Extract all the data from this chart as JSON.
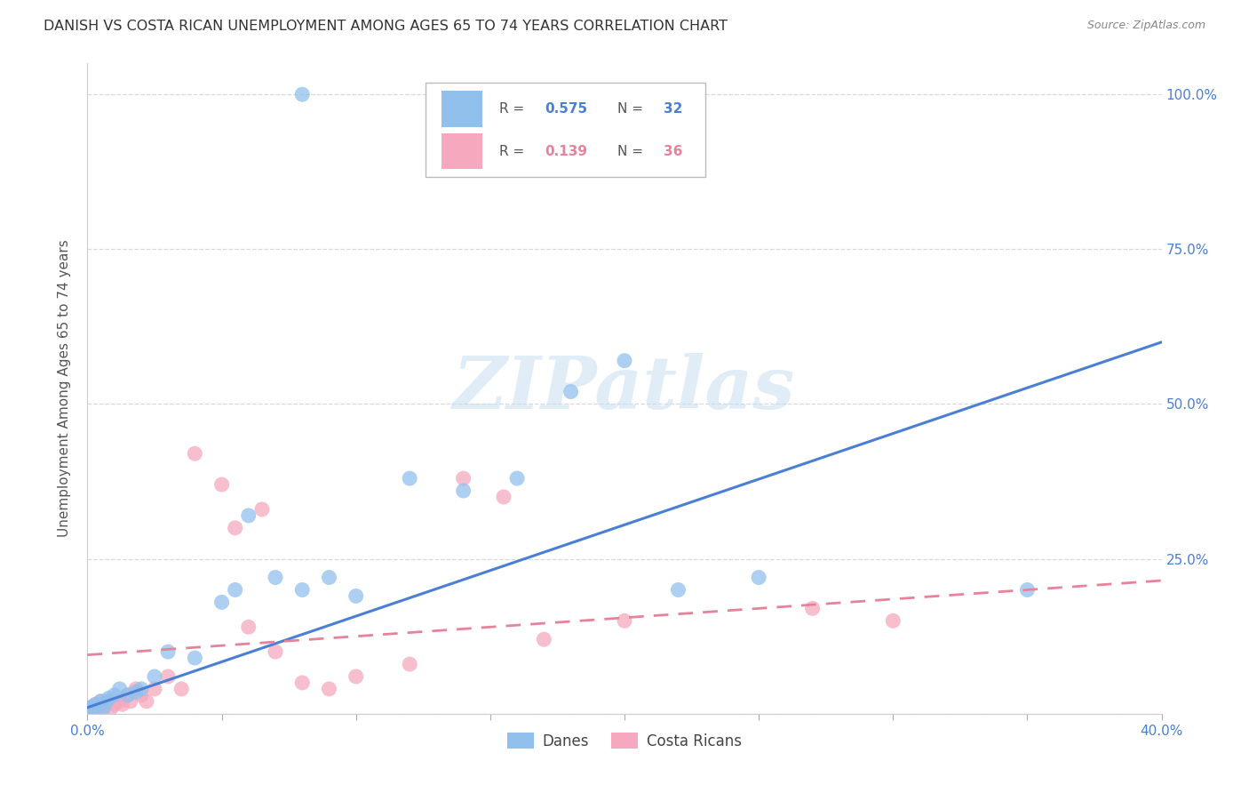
{
  "title": "DANISH VS COSTA RICAN UNEMPLOYMENT AMONG AGES 65 TO 74 YEARS CORRELATION CHART",
  "source": "Source: ZipAtlas.com",
  "ylabel": "Unemployment Among Ages 65 to 74 years",
  "xlim": [
    0.0,
    0.4
  ],
  "ylim": [
    0.0,
    1.05
  ],
  "xticks": [
    0.0,
    0.05,
    0.1,
    0.15,
    0.2,
    0.25,
    0.3,
    0.35,
    0.4
  ],
  "yticks": [
    0.0,
    0.25,
    0.5,
    0.75,
    1.0
  ],
  "ytick_labels": [
    "0.0%",
    "25.0%",
    "50.0%",
    "75.0%",
    "100.0%"
  ],
  "legend_blue_R": "0.575",
  "legend_blue_N": "32",
  "legend_pink_R": "0.139",
  "legend_pink_N": "36",
  "blue_color": "#92c0ed",
  "pink_color": "#f5a8be",
  "blue_line_color": "#4a7fd4",
  "pink_line_color": "#e8829a",
  "blue_scatter_x": [
    0.001,
    0.002,
    0.003,
    0.004,
    0.005,
    0.006,
    0.007,
    0.008,
    0.01,
    0.012,
    0.015,
    0.018,
    0.02,
    0.025,
    0.03,
    0.04,
    0.05,
    0.055,
    0.06,
    0.07,
    0.08,
    0.09,
    0.1,
    0.12,
    0.14,
    0.16,
    0.18,
    0.2,
    0.22,
    0.25,
    0.35,
    0.08
  ],
  "blue_scatter_y": [
    0.01,
    0.01,
    0.015,
    0.01,
    0.02,
    0.01,
    0.02,
    0.025,
    0.03,
    0.04,
    0.03,
    0.035,
    0.04,
    0.06,
    0.1,
    0.09,
    0.18,
    0.2,
    0.32,
    0.22,
    0.2,
    0.22,
    0.19,
    0.38,
    0.36,
    0.38,
    0.52,
    0.57,
    0.2,
    0.22,
    0.2,
    1.0
  ],
  "pink_scatter_x": [
    0.001,
    0.002,
    0.003,
    0.004,
    0.005,
    0.006,
    0.007,
    0.008,
    0.009,
    0.01,
    0.012,
    0.013,
    0.015,
    0.016,
    0.018,
    0.02,
    0.022,
    0.025,
    0.03,
    0.035,
    0.04,
    0.05,
    0.055,
    0.06,
    0.065,
    0.07,
    0.08,
    0.09,
    0.1,
    0.12,
    0.14,
    0.155,
    0.17,
    0.2,
    0.27,
    0.3
  ],
  "pink_scatter_y": [
    0.01,
    0.01,
    0.015,
    0.01,
    0.02,
    0.01,
    0.015,
    0.02,
    0.01,
    0.015,
    0.02,
    0.015,
    0.03,
    0.02,
    0.04,
    0.03,
    0.02,
    0.04,
    0.06,
    0.04,
    0.42,
    0.37,
    0.3,
    0.14,
    0.33,
    0.1,
    0.05,
    0.04,
    0.06,
    0.08,
    0.38,
    0.35,
    0.12,
    0.15,
    0.17,
    0.15
  ],
  "blue_line_x0": 0.0,
  "blue_line_x1": 0.4,
  "blue_line_y0": 0.01,
  "blue_line_y1": 0.6,
  "pink_line_x0": 0.0,
  "pink_line_x1": 0.4,
  "pink_line_y0": 0.095,
  "pink_line_y1": 0.215,
  "watermark_text": "ZIPatlas",
  "watermark_color": "#c8ddf0",
  "background_color": "#ffffff",
  "grid_color": "#d0d0d0",
  "axis_label_color": "#555555",
  "tick_label_color": "#4a7fd4",
  "title_color": "#333333",
  "source_color": "#888888"
}
